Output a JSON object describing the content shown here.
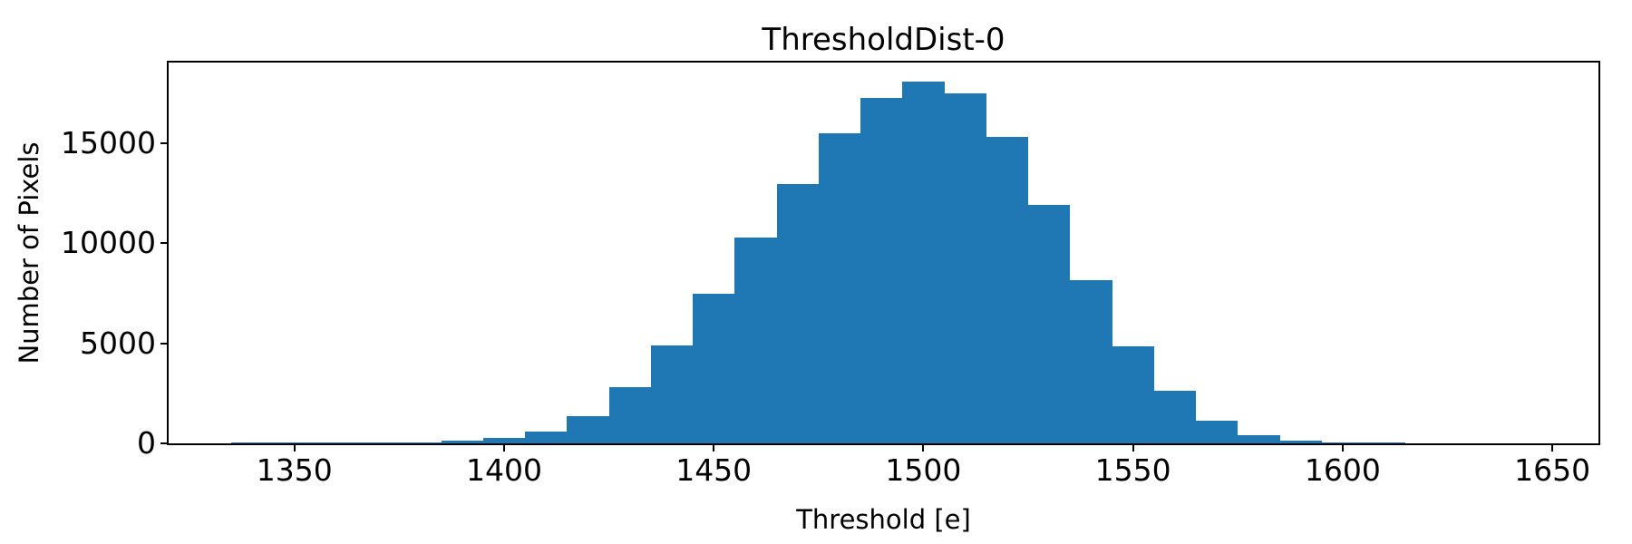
{
  "chart_data": {
    "type": "bar",
    "subtype": "histogram",
    "title": "ThresholdDist-0",
    "xlabel": "Threshold [e]",
    "ylabel": "Number of Pixels",
    "xlim": [
      1320,
      1661
    ],
    "ylim": [
      0,
      19040
    ],
    "x_ticks": [
      1350,
      1400,
      1450,
      1500,
      1550,
      1600,
      1650
    ],
    "y_ticks": [
      0,
      5000,
      10000,
      15000
    ],
    "grid": false,
    "legend": "none",
    "bar_color": "#1f77b4",
    "axis_color": "#000000",
    "background_color": "#ffffff",
    "bin_edges": [
      1335,
      1345,
      1355,
      1365,
      1375,
      1385,
      1395,
      1405,
      1415,
      1425,
      1435,
      1445,
      1455,
      1465,
      1475,
      1485,
      1495,
      1505,
      1515,
      1525,
      1535,
      1545,
      1555,
      1565,
      1575,
      1585,
      1595,
      1605,
      1615
    ],
    "counts": [
      40,
      45,
      50,
      55,
      65,
      140,
      290,
      610,
      1350,
      2820,
      4900,
      7500,
      10300,
      12970,
      15500,
      17270,
      18100,
      17490,
      15320,
      11920,
      8160,
      4870,
      2620,
      1120,
      410,
      150,
      45,
      25
    ]
  }
}
